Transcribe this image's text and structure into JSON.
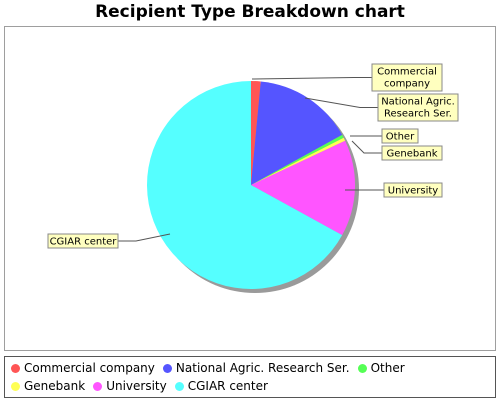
{
  "chart_data": {
    "type": "pie",
    "title": "Recipient Type Breakdown chart",
    "categories": [
      "Commercial company",
      "National Agric. Research Ser.",
      "Other",
      "Genebank",
      "University",
      "CGIAR center"
    ],
    "label_lines": [
      [
        "Commercial",
        "company"
      ],
      [
        "National Agric.",
        "Research Ser."
      ],
      [
        "Other"
      ],
      [
        "Genebank"
      ],
      [
        "University"
      ],
      [
        "CGIAR center"
      ]
    ],
    "values": [
      1.5,
      15.5,
      0.5,
      0.5,
      15.0,
      67.0
    ],
    "colors": [
      "#ff5555",
      "#5555ff",
      "#55ff55",
      "#ffff55",
      "#ff55ff",
      "#55ffff"
    ],
    "legend_position": "bottom"
  }
}
